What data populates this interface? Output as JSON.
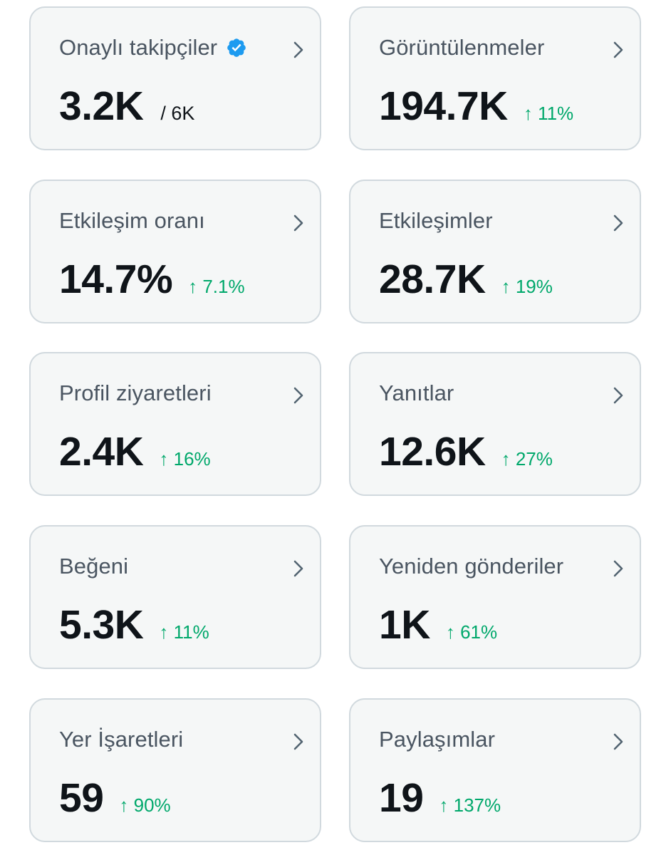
{
  "colors": {
    "card_background": "#f5f7f7",
    "card_border": "#d1d9de",
    "label_text": "#4a5561",
    "value_text": "#0f1419",
    "positive_change": "#00a86b",
    "verified_badge": "#1d9bf0"
  },
  "cards": [
    {
      "label": "Onaylı takipçiler",
      "value": "3.2K",
      "sub": "/ 6K",
      "icon": "verified-badge-icon"
    },
    {
      "label": "Görüntülenmeler",
      "value": "194.7K",
      "change": "↑ 11%"
    },
    {
      "label": "Etkileşim oranı",
      "value": "14.7%",
      "change": "↑ 7.1%"
    },
    {
      "label": "Etkileşimler",
      "value": "28.7K",
      "change": "↑ 19%"
    },
    {
      "label": "Profil ziyaretleri",
      "value": "2.4K",
      "change": "↑ 16%"
    },
    {
      "label": "Yanıtlar",
      "value": "12.6K",
      "change": "↑ 27%"
    },
    {
      "label": "Beğeni",
      "value": "5.3K",
      "change": "↑ 11%"
    },
    {
      "label": "Yeniden gönderiler",
      "value": "1K",
      "change": "↑ 61%"
    },
    {
      "label": "Yer İşaretleri",
      "value": "59",
      "change": "↑ 90%"
    },
    {
      "label": "Paylaşımlar",
      "value": "19",
      "change": "↑ 137%"
    }
  ]
}
